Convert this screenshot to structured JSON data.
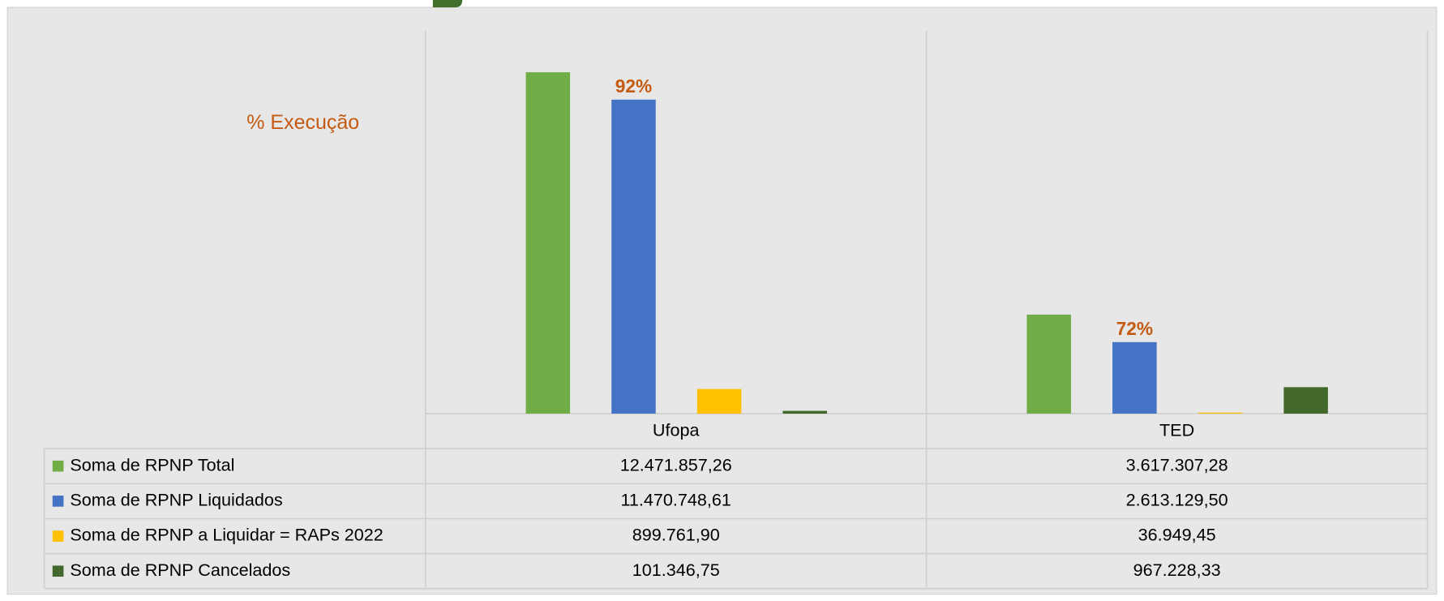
{
  "chart_data": {
    "type": "bar",
    "annotation": "% Execução",
    "categories": [
      "Ufopa",
      "TED"
    ],
    "series": [
      {
        "name": "Soma de RPNP Total",
        "color": "#70ad47",
        "values": [
          12471857.26,
          3617307.28
        ],
        "value_labels": [
          "12.471.857,26",
          "3.617.307,28"
        ]
      },
      {
        "name": "Soma de RPNP Liquidados",
        "color": "#4472c4",
        "values": [
          11470748.61,
          2613129.5
        ],
        "value_labels": [
          "11.470.748,61",
          "2.613.129,50"
        ],
        "point_labels": [
          "92%",
          "72%"
        ]
      },
      {
        "name": "Soma de RPNP a Liquidar = RAPs 2022",
        "color": "#ffc000",
        "values": [
          899761.9,
          36949.45
        ],
        "value_labels": [
          "899.761,90",
          "36.949,45"
        ]
      },
      {
        "name": "Soma de RPNP Cancelados",
        "color": "#43682b",
        "values": [
          101346.75,
          967228.33
        ],
        "value_labels": [
          "101.346,75",
          "967.228,33"
        ]
      }
    ],
    "ylim": [
      0,
      14000000
    ],
    "label_color": "#c55a11"
  }
}
